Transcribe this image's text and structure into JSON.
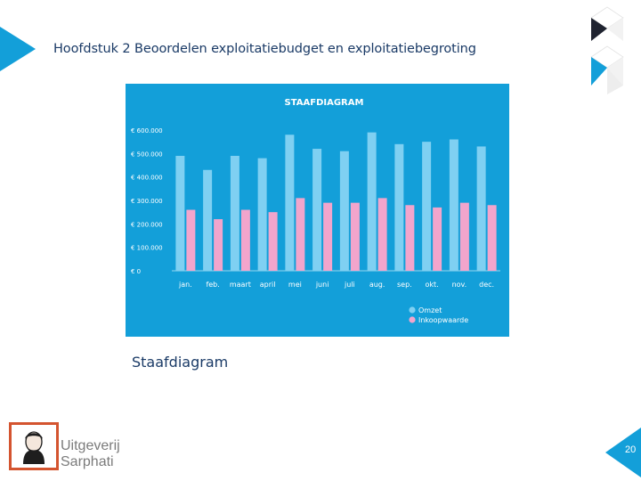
{
  "header": {
    "title": "Hoofdstuk 2 Beoordelen exploitatiebudget en exploitatiebegroting"
  },
  "caption": "Staafdiagram",
  "publisher": {
    "line1": "Uitgeverij",
    "line2": "Sarphati"
  },
  "page_number": "20",
  "colors": {
    "accent": "#139fd9",
    "panel": "#139fd9",
    "title_text": "#1a3a66",
    "omzet": "#7fd0f2",
    "inkoopwaarde": "#f2a5cc",
    "logo_border": "#d4542f"
  },
  "chart_data": {
    "type": "bar",
    "title": "STAAFDIAGRAM",
    "xlabel": "",
    "ylabel": "",
    "categories": [
      "jan.",
      "feb.",
      "maart",
      "april",
      "mei",
      "juni",
      "juli",
      "aug.",
      "sep.",
      "okt.",
      "nov.",
      "dec."
    ],
    "series": [
      {
        "name": "Omzet",
        "values": [
          490000,
          430000,
          490000,
          480000,
          580000,
          520000,
          510000,
          590000,
          540000,
          550000,
          560000,
          530000
        ]
      },
      {
        "name": "Inkoopwaarde",
        "values": [
          260000,
          220000,
          260000,
          250000,
          310000,
          290000,
          290000,
          310000,
          280000,
          270000,
          290000,
          280000
        ]
      }
    ],
    "ylim": [
      0,
      600000
    ],
    "yticks": [
      0,
      100000,
      200000,
      300000,
      400000,
      500000,
      600000
    ],
    "ytick_labels": [
      "€ 0",
      "€ 100.000",
      "€ 200.000",
      "€ 300.000",
      "€ 400.000",
      "€ 500.000",
      "€ 600.000"
    ],
    "grid": false,
    "legend": "bottom-right"
  }
}
